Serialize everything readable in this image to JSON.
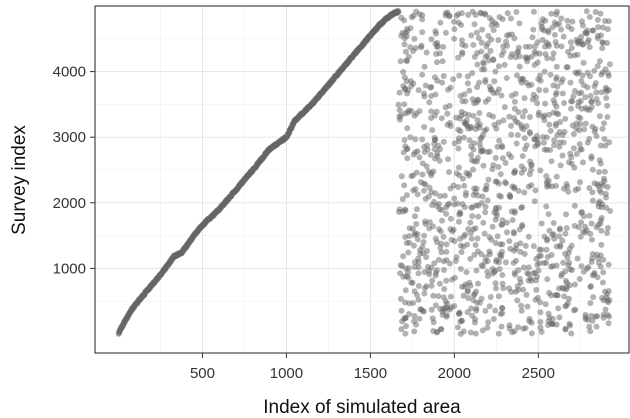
{
  "chart_data": {
    "type": "scatter",
    "title": "",
    "xlabel": "Index of simulated area",
    "ylabel": "Survey index",
    "xlim": [
      -140,
      3040
    ],
    "ylim": [
      -290,
      5000
    ],
    "x_ticks": [
      500,
      1000,
      1500,
      2000,
      2500
    ],
    "y_ticks": [
      1000,
      2000,
      3000,
      4000
    ],
    "grid": true,
    "legend": "none",
    "point_color": "#666666",
    "point_opacity": 0.5,
    "series": [
      {
        "description": "Matched areas (x = 1 to 1667): survey index rises monotonically with area index",
        "anchor_points": [
          [
            1,
            0
          ],
          [
            10,
            60
          ],
          [
            40,
            200
          ],
          [
            80,
            380
          ],
          [
            150,
            600
          ],
          [
            250,
            900
          ],
          [
            330,
            1180
          ],
          [
            380,
            1250
          ],
          [
            450,
            1500
          ],
          [
            500,
            1660
          ],
          [
            600,
            1900
          ],
          [
            700,
            2200
          ],
          [
            800,
            2500
          ],
          [
            900,
            2820
          ],
          [
            1000,
            3000
          ],
          [
            1050,
            3250
          ],
          [
            1150,
            3500
          ],
          [
            1250,
            3800
          ],
          [
            1350,
            4100
          ],
          [
            1450,
            4400
          ],
          [
            1550,
            4700
          ],
          [
            1620,
            4860
          ],
          [
            1667,
            4920
          ]
        ]
      },
      {
        "description": "Unmatched areas (x = 1667 to 2930): survey index scattered uniformly between 0 and 4920",
        "x_range": [
          1667,
          2930
        ],
        "y_range": [
          0,
          4920
        ],
        "approx_count": 1260
      }
    ]
  }
}
